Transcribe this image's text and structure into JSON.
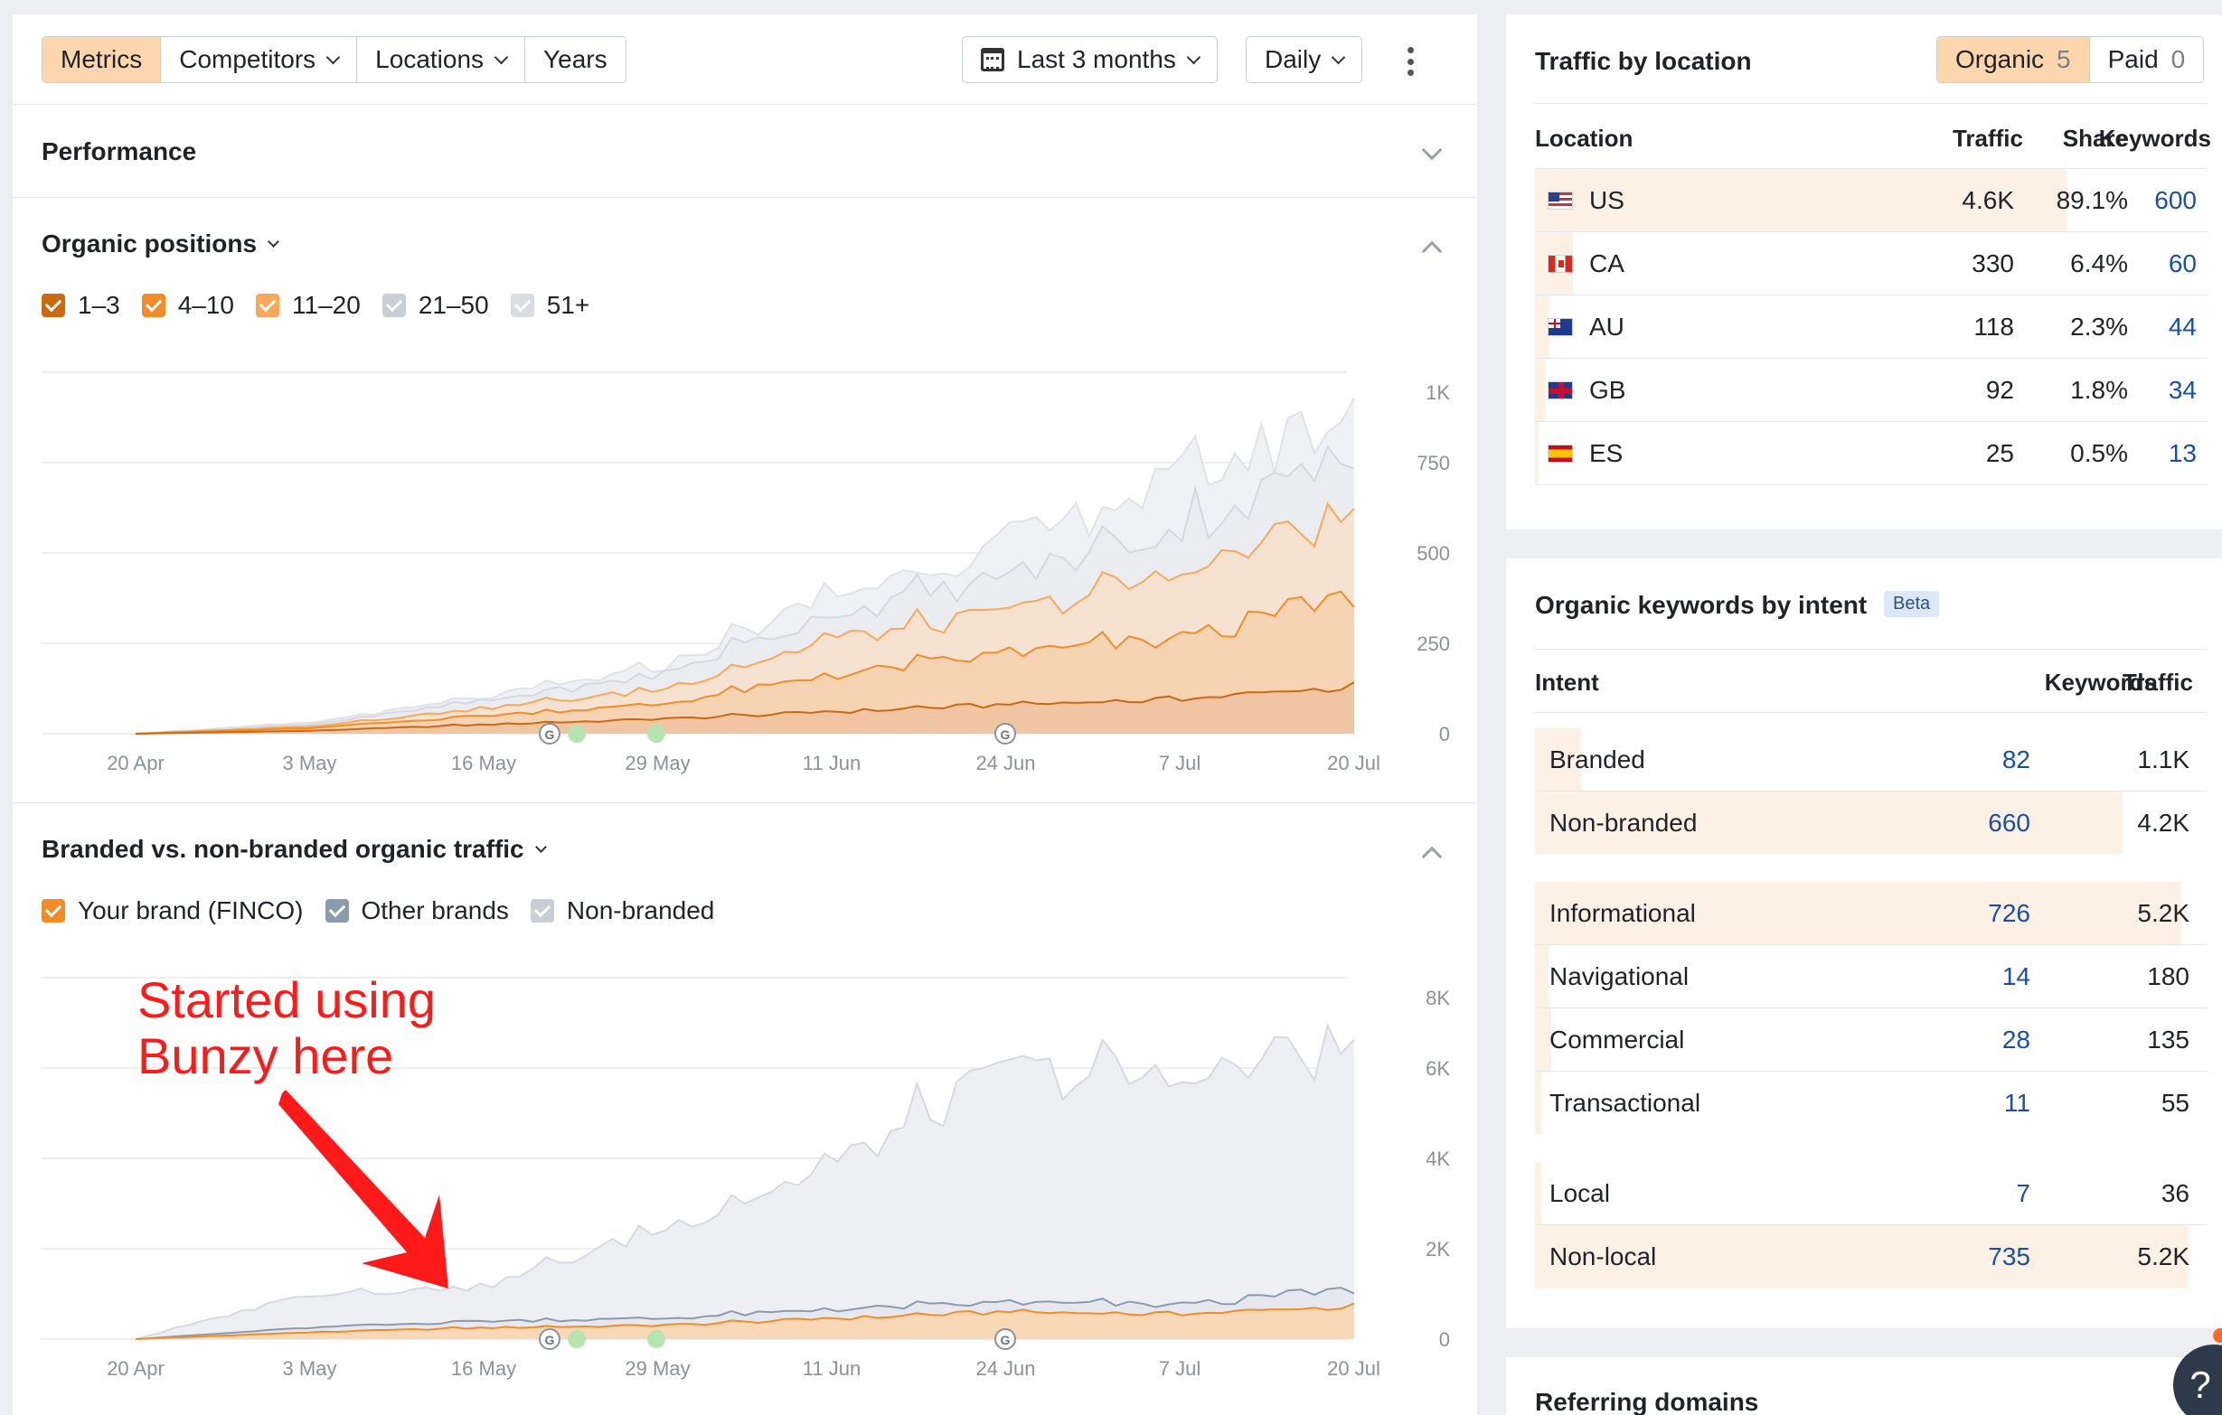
{
  "toolbar": {
    "tabs": [
      {
        "label": "Metrics",
        "active": true,
        "dropdown": false
      },
      {
        "label": "Competitors",
        "active": false,
        "dropdown": true
      },
      {
        "label": "Locations",
        "active": false,
        "dropdown": true
      },
      {
        "label": "Years",
        "active": false,
        "dropdown": false
      }
    ],
    "date_range": "Last 3 months",
    "interval": "Daily"
  },
  "performance": {
    "title": "Performance"
  },
  "organic_positions": {
    "title": "Organic positions",
    "legend": [
      {
        "label": "1–3",
        "color": "#c96a12"
      },
      {
        "label": "4–10",
        "color": "#f28c28"
      },
      {
        "label": "11–20",
        "color": "#f7a85a"
      },
      {
        "label": "21–50",
        "color": "#c9ced6"
      },
      {
        "label": "51+",
        "color": "#d9dde3"
      }
    ]
  },
  "branded": {
    "title": "Branded vs. non-branded organic traffic",
    "legend": [
      {
        "label": "Your brand (FINCO)",
        "color": "#f28c28"
      },
      {
        "label": "Other brands",
        "color": "#8c9aae"
      },
      {
        "label": "Non-branded",
        "color": "#c9ced6"
      }
    ],
    "annotation": [
      "Started using",
      "Bunzy here"
    ]
  },
  "chart_data": [
    {
      "type": "area",
      "title": "Organic positions",
      "categories": [
        "20 Apr",
        "3 May",
        "16 May",
        "29 May",
        "11 Jun",
        "24 Jun",
        "7 Jul",
        "20 Jul"
      ],
      "y_ticks": [
        "1K",
        "750",
        "500",
        "250",
        "0"
      ],
      "ylim": [
        0,
        1000
      ],
      "stacked": true,
      "series": [
        {
          "name": "1–3",
          "values": [
            0,
            8,
            25,
            40,
            60,
            80,
            95,
            130
          ]
        },
        {
          "name": "4–10",
          "values": [
            0,
            15,
            50,
            80,
            160,
            220,
            260,
            380
          ]
        },
        {
          "name": "11–20",
          "values": [
            0,
            20,
            70,
            120,
            260,
            330,
            440,
            610
          ]
        },
        {
          "name": "21–50",
          "values": [
            0,
            25,
            90,
            160,
            330,
            430,
            570,
            760
          ]
        },
        {
          "name": "51+",
          "values": [
            0,
            30,
            100,
            180,
            380,
            520,
            700,
            880
          ]
        }
      ]
    },
    {
      "type": "area",
      "title": "Branded vs. non-branded organic traffic",
      "categories": [
        "20 Apr",
        "3 May",
        "16 May",
        "29 May",
        "11 Jun",
        "24 Jun",
        "7 Jul",
        "20 Jul"
      ],
      "y_ticks": [
        "8K",
        "6K",
        "4K",
        "2K",
        "0"
      ],
      "ylim": [
        0,
        8000
      ],
      "stacked": true,
      "series": [
        {
          "name": "Your brand (FINCO)",
          "values": [
            0,
            150,
            250,
            300,
            450,
            600,
            550,
            720
          ]
        },
        {
          "name": "Other brands",
          "values": [
            0,
            250,
            400,
            450,
            650,
            800,
            750,
            1100
          ]
        },
        {
          "name": "Non-branded",
          "values": [
            0,
            1000,
            1150,
            2400,
            3800,
            5900,
            5700,
            6500
          ]
        }
      ]
    }
  ],
  "traffic_by_location": {
    "title": "Traffic by location",
    "toggle": [
      {
        "label": "Organic",
        "count": "5",
        "active": true
      },
      {
        "label": "Paid",
        "count": "0",
        "active": false
      }
    ],
    "headers": {
      "location": "Location",
      "traffic": "Traffic",
      "share": "Share",
      "keywords": "Keywords"
    },
    "rows": [
      {
        "country": "US",
        "traffic": "4.6K",
        "share": "89.1%",
        "keywords": "600",
        "share_value": 0.891
      },
      {
        "country": "CA",
        "traffic": "330",
        "share": "6.4%",
        "keywords": "60",
        "share_value": 0.064
      },
      {
        "country": "AU",
        "traffic": "118",
        "share": "2.3%",
        "keywords": "44",
        "share_value": 0.023
      },
      {
        "country": "GB",
        "traffic": "92",
        "share": "1.8%",
        "keywords": "34",
        "share_value": 0.018
      },
      {
        "country": "ES",
        "traffic": "25",
        "share": "0.5%",
        "keywords": "13",
        "share_value": 0.005
      }
    ]
  },
  "keywords_by_intent": {
    "title": "Organic keywords by intent",
    "badge": "Beta",
    "headers": {
      "intent": "Intent",
      "keywords": "Keywords",
      "traffic": "Traffic"
    },
    "groups": [
      [
        {
          "intent": "Branded",
          "keywords": "82",
          "traffic": "1.1K",
          "share_value": 0.07
        },
        {
          "intent": "Non-branded",
          "keywords": "660",
          "traffic": "4.2K",
          "share_value": 0.89
        }
      ],
      [
        {
          "intent": "Informational",
          "keywords": "726",
          "traffic": "5.2K",
          "share_value": 0.98
        },
        {
          "intent": "Navigational",
          "keywords": "14",
          "traffic": "180",
          "share_value": 0.02
        },
        {
          "intent": "Commercial",
          "keywords": "28",
          "traffic": "135",
          "share_value": 0.025
        },
        {
          "intent": "Transactional",
          "keywords": "11",
          "traffic": "55",
          "share_value": 0.01
        }
      ],
      [
        {
          "intent": "Local",
          "keywords": "7",
          "traffic": "36",
          "share_value": 0.01
        },
        {
          "intent": "Non-local",
          "keywords": "735",
          "traffic": "5.2K",
          "share_value": 0.99
        }
      ]
    ]
  },
  "referring_domains": {
    "title": "Referring domains"
  },
  "help": {
    "label": "?"
  }
}
